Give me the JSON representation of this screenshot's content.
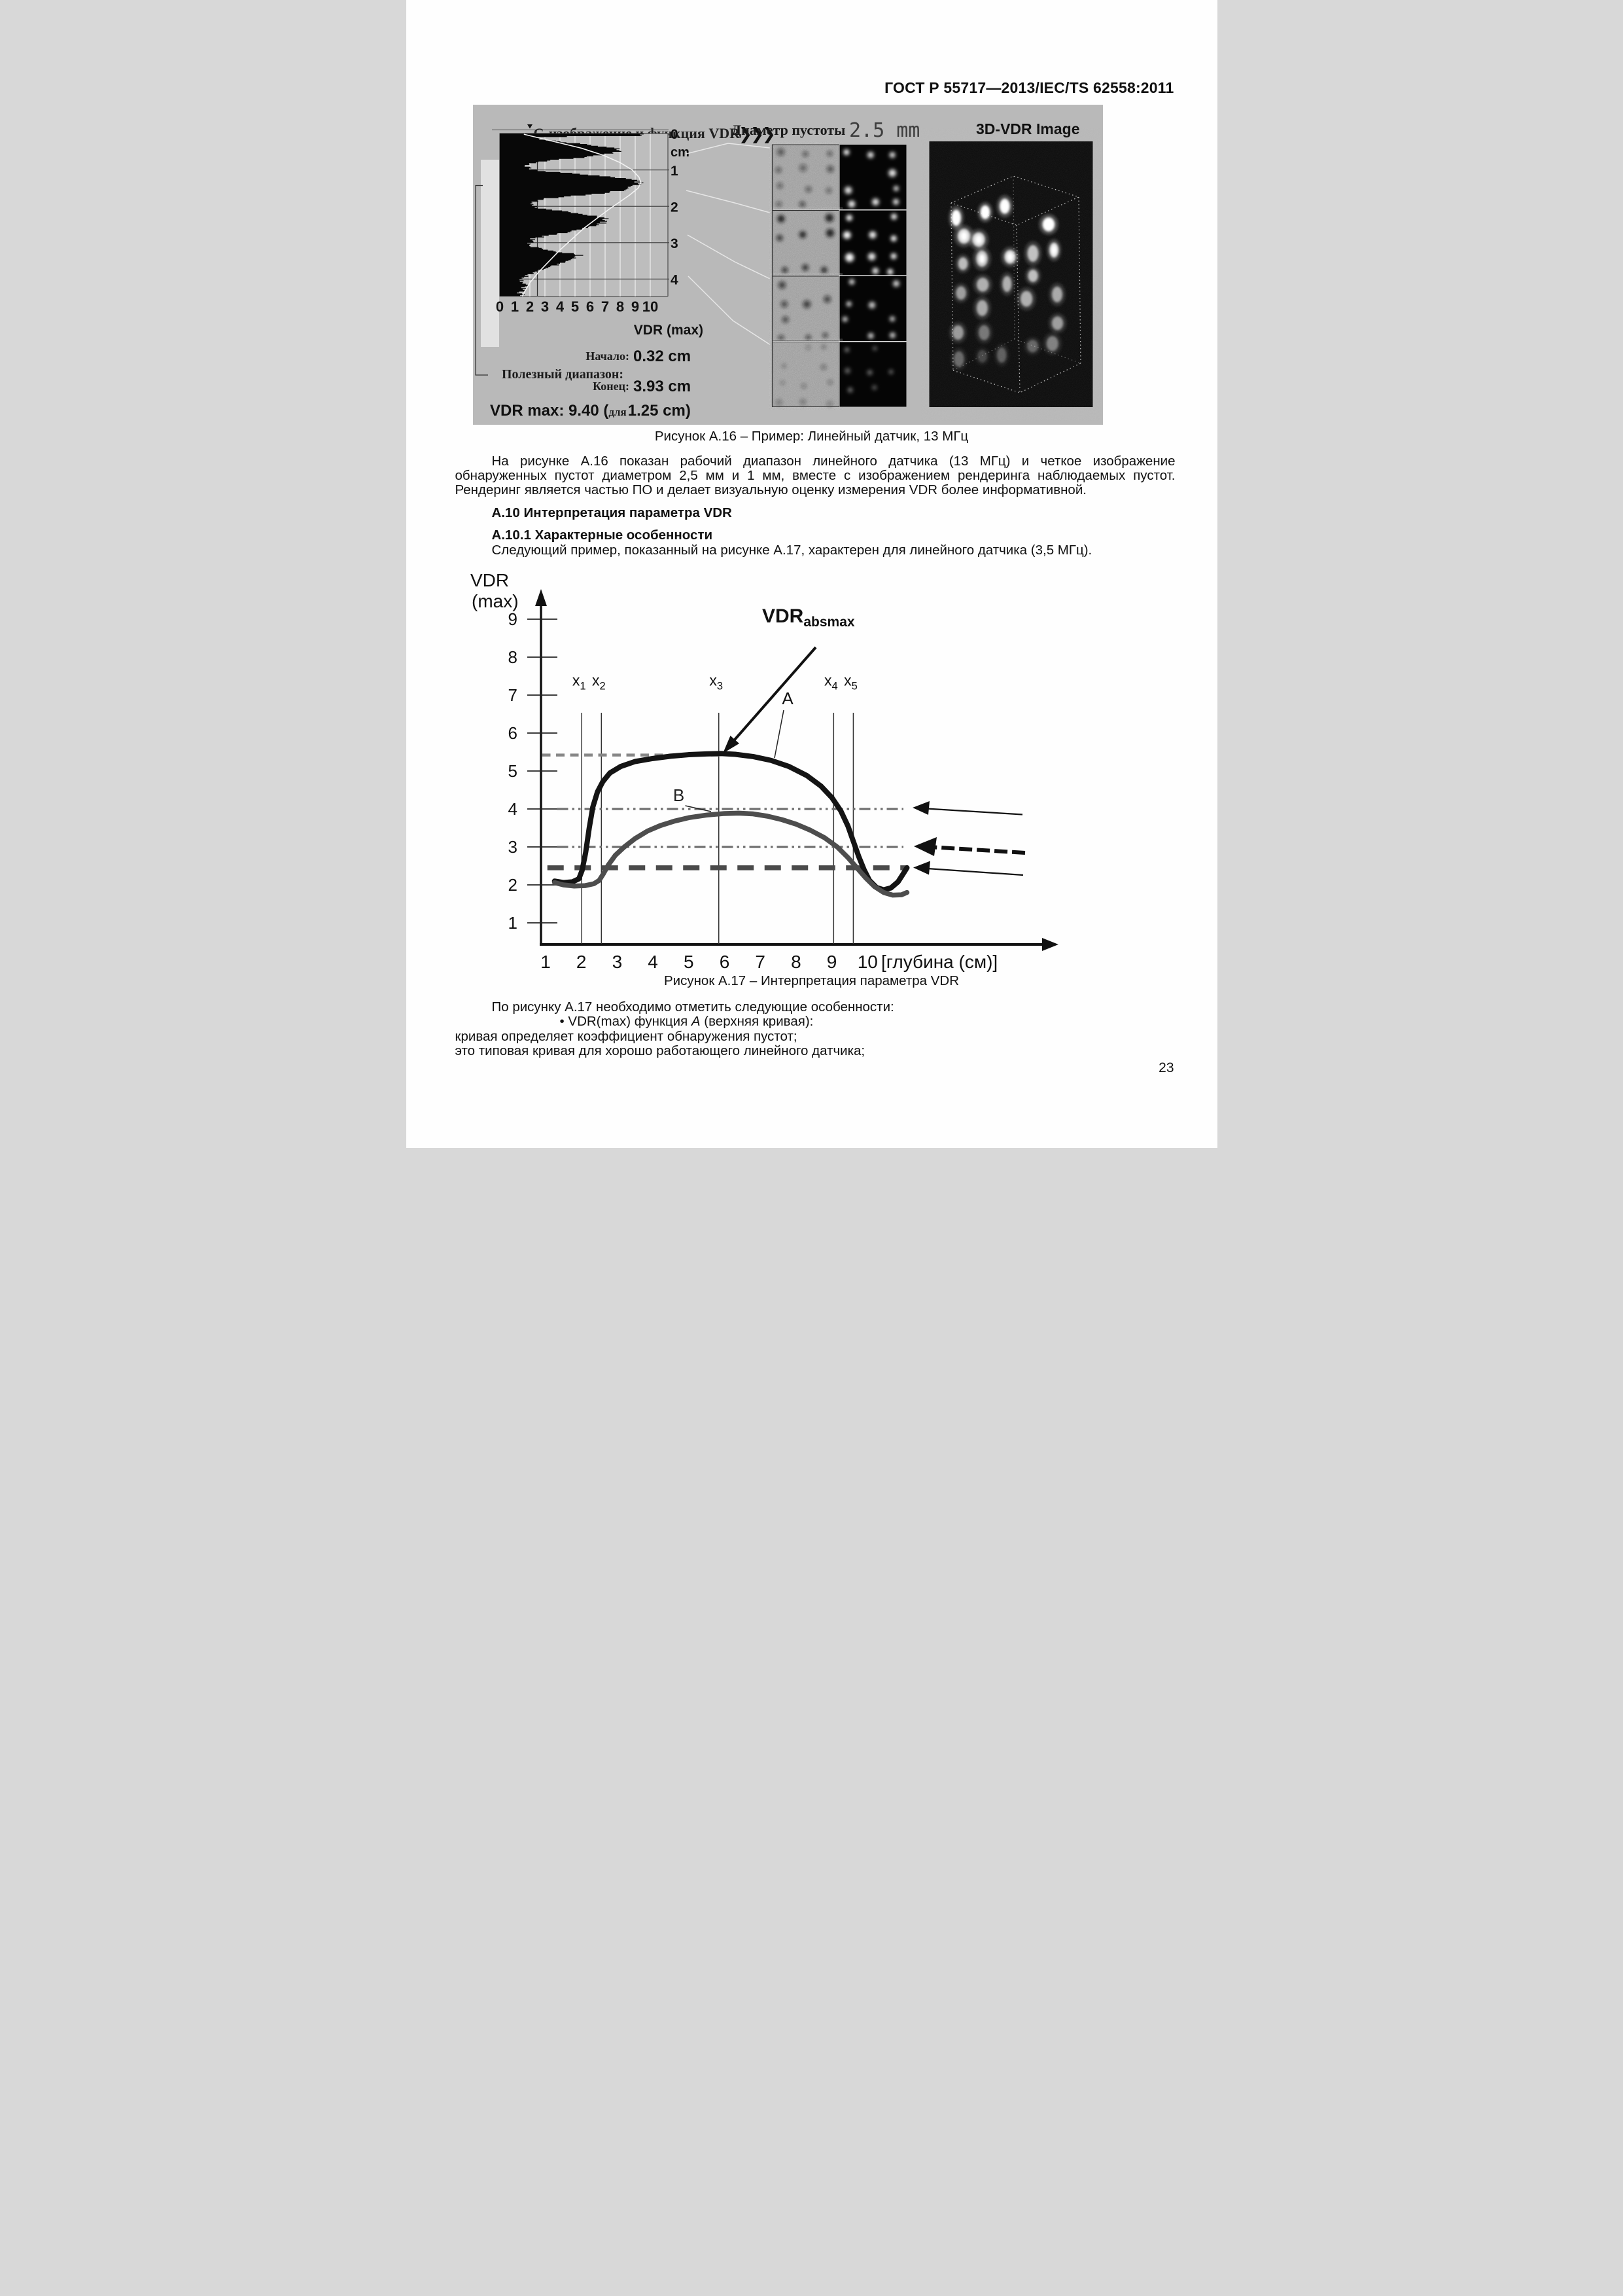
{
  "header": {
    "title": "ГОСТ Р 55717—2013/IEC/TS 62558:2011"
  },
  "page": {
    "number": "23"
  },
  "captions": {
    "fig16": "Рисунок А.16 – Пример: Линейный датчик, 13 МГц",
    "fig17": "Рисунок А.17 – Интерпретация параметра VDR"
  },
  "paragraphs": {
    "p1_lines": [
      "На рисунке А.16 показан рабочий диапазон линейного датчика (13 МГц) и четкое изображение",
      "обнаруженных пустот диаметром 2,5 мм и 1 мм, вместе с изображением рендеринга наблюдаемых пустот.",
      "Рендеринг является частью ПО и делает визуальную оценку измерения VDR более информативной."
    ],
    "p2": "Следующий пример, показанный на рисунке А.17, характерен для линейного датчика (3,5 МГц)."
  },
  "headings": {
    "h10": "А.10 Интерпретация параметра VDR",
    "h101": "А.10.1 Характерные особенности"
  },
  "notes": {
    "line1": "По рисунку А.17 необходимо отметить следующие особенности:",
    "bullet_marker": "•",
    "bullet_pre": "VDR(max) функция ",
    "bullet_italic": "А",
    "bullet_post": " (верхняя кривая):",
    "line3": "кривая определяет коэффициент обнаружения пустот;",
    "line4": "это типовая кривая для хорошо работающего линейного датчика;"
  },
  "figure16": {
    "left_title": "С-изображение и функция VDR",
    "arrows": "❯❯❯",
    "cm_labels": [
      "0",
      "cm",
      "1",
      "2",
      "3",
      "4"
    ],
    "x_labels": [
      "0",
      "1",
      "2",
      "3",
      "4",
      "5",
      "6",
      "7",
      "8",
      "9",
      "10"
    ],
    "x_axis_label": "VDR (max)",
    "useful_range_label": "Полезный диапазон:",
    "start_label": "Начало:",
    "start_value": "0.32 cm",
    "end_label": "Конец:",
    "end_value": "3.93 cm",
    "vdr_max_parts": [
      "VDR max: 9.40 (",
      "для",
      "1.25 cm)"
    ],
    "void_title": "Диаметр пустоты",
    "void_value": "2.5 mm",
    "title_3d_parts": [
      "3D-",
      "VDR",
      " Image"
    ],
    "c_image_profile": [
      [
        0,
        9.5
      ],
      [
        0.05,
        9.2
      ],
      [
        0.08,
        2.6
      ],
      [
        0.16,
        2.8
      ],
      [
        0.25,
        4.8
      ],
      [
        0.33,
        6.6
      ],
      [
        0.42,
        8.1
      ],
      [
        0.5,
        7.8
      ],
      [
        0.58,
        6.9
      ],
      [
        0.66,
        5.2
      ],
      [
        0.74,
        3.0
      ],
      [
        0.8,
        2.1
      ],
      [
        0.88,
        1.9
      ],
      [
        0.96,
        2.1
      ],
      [
        1.02,
        2.8
      ],
      [
        1.1,
        5.2
      ],
      [
        1.18,
        7.6
      ],
      [
        1.27,
        9.0
      ],
      [
        1.35,
        9.3
      ],
      [
        1.45,
        8.9
      ],
      [
        1.55,
        8.2
      ],
      [
        1.65,
        6.4
      ],
      [
        1.73,
        4.2
      ],
      [
        1.8,
        2.6
      ],
      [
        1.88,
        2.1
      ],
      [
        1.96,
        2.2
      ],
      [
        2.05,
        2.6
      ],
      [
        2.14,
        4.4
      ],
      [
        2.24,
        6.2
      ],
      [
        2.34,
        7.1
      ],
      [
        2.45,
        6.8
      ],
      [
        2.56,
        6.0
      ],
      [
        2.66,
        5.0
      ],
      [
        2.76,
        3.6
      ],
      [
        2.86,
        2.4
      ],
      [
        2.95,
        2.0
      ],
      [
        3.05,
        2.0
      ],
      [
        3.14,
        2.6
      ],
      [
        3.24,
        4.0
      ],
      [
        3.34,
        5.3
      ],
      [
        3.44,
        4.9
      ],
      [
        3.56,
        4.0
      ],
      [
        3.68,
        3.1
      ],
      [
        3.8,
        2.4
      ],
      [
        3.9,
        1.8
      ],
      [
        4.05,
        1.5
      ],
      [
        4.2,
        1.7
      ],
      [
        4.35,
        1.3
      ],
      [
        4.47,
        1.6
      ]
    ],
    "vdr_curve": [
      [
        0.02,
        1.6
      ],
      [
        0.2,
        3.4
      ],
      [
        0.4,
        5.4
      ],
      [
        0.6,
        6.9
      ],
      [
        0.8,
        8.0
      ],
      [
        1.0,
        8.8
      ],
      [
        1.2,
        9.25
      ],
      [
        1.35,
        9.38
      ],
      [
        1.5,
        9.2
      ],
      [
        1.7,
        8.6
      ],
      [
        1.9,
        7.9
      ],
      [
        2.1,
        7.2
      ],
      [
        2.35,
        6.4
      ],
      [
        2.6,
        5.6
      ],
      [
        2.9,
        4.8
      ],
      [
        3.2,
        4.0
      ],
      [
        3.5,
        3.3
      ],
      [
        3.8,
        2.6
      ],
      [
        4.1,
        2.0
      ],
      [
        4.35,
        1.65
      ],
      [
        4.47,
        1.5
      ]
    ],
    "void_rows": [
      {
        "dark": 0.6,
        "bright": 0.95,
        "r": 10
      },
      {
        "dark": 0.95,
        "bright": 1.0,
        "r": 11
      },
      {
        "dark": 0.8,
        "bright": 0.78,
        "r": 10
      },
      {
        "dark": 0.38,
        "bright": 0.45,
        "r": 8
      }
    ]
  },
  "chart_data": {
    "type": "line",
    "title": "",
    "xlabel": "[глубина (см)]",
    "ylabel_lines": [
      "VDR",
      "(max)"
    ],
    "x_ticks": [
      "1",
      "2",
      "3",
      "4",
      "5",
      "6",
      "7",
      "8",
      "9",
      "10"
    ],
    "y_ticks": [
      "1",
      "2",
      "3",
      "4",
      "5",
      "6",
      "7",
      "8",
      "9"
    ],
    "xlim": [
      0.75,
      15.3
    ],
    "ylim": [
      0.35,
      9.8
    ],
    "grid": false,
    "legend_position": "none",
    "depth_markers": [
      {
        "base": "x",
        "sub": "1",
        "x": 2.01
      },
      {
        "base": "x",
        "sub": "2",
        "x": 2.56
      },
      {
        "base": "x",
        "sub": "3",
        "x": 5.84
      },
      {
        "base": "x",
        "sub": "4",
        "x": 9.05
      },
      {
        "base": "x",
        "sub": "5",
        "x": 9.6
      }
    ],
    "reference_lines": [
      {
        "y": 5.42,
        "style": "dashed",
        "from": 0.9,
        "to": 5.9
      },
      {
        "y": 4.0,
        "style": "dashdot",
        "from": 1.32,
        "to": 11.0
      },
      {
        "y": 3.0,
        "style": "dashdot",
        "from": 1.32,
        "to": 11.0
      },
      {
        "y": 2.45,
        "style": "bold_dashed",
        "from": 1.05,
        "to": 11.12
      }
    ],
    "series": [
      {
        "name": "A",
        "color": "#141414",
        "width": 16,
        "points": [
          [
            1.25,
            2.1
          ],
          [
            1.5,
            2.06
          ],
          [
            1.75,
            2.08
          ],
          [
            1.93,
            2.16
          ],
          [
            2.02,
            2.38
          ],
          [
            2.12,
            2.85
          ],
          [
            2.22,
            3.5
          ],
          [
            2.32,
            4.05
          ],
          [
            2.45,
            4.45
          ],
          [
            2.6,
            4.72
          ],
          [
            2.8,
            4.95
          ],
          [
            3.1,
            5.12
          ],
          [
            3.5,
            5.25
          ],
          [
            4.0,
            5.33
          ],
          [
            4.5,
            5.39
          ],
          [
            5.0,
            5.43
          ],
          [
            5.5,
            5.45
          ],
          [
            5.9,
            5.46
          ],
          [
            6.3,
            5.44
          ],
          [
            6.8,
            5.38
          ],
          [
            7.3,
            5.28
          ],
          [
            7.8,
            5.12
          ],
          [
            8.3,
            4.88
          ],
          [
            8.7,
            4.6
          ],
          [
            9.0,
            4.3
          ],
          [
            9.25,
            3.95
          ],
          [
            9.45,
            3.55
          ],
          [
            9.6,
            3.15
          ],
          [
            9.75,
            2.75
          ],
          [
            9.9,
            2.4
          ],
          [
            10.05,
            2.12
          ],
          [
            10.25,
            1.93
          ],
          [
            10.45,
            1.87
          ],
          [
            10.65,
            1.92
          ],
          [
            10.85,
            2.08
          ],
          [
            11.0,
            2.3
          ],
          [
            11.1,
            2.45
          ]
        ]
      },
      {
        "name": "B",
        "color": "#4d4d4d",
        "width": 15,
        "points": [
          [
            1.25,
            2.06
          ],
          [
            1.5,
            2.0
          ],
          [
            1.8,
            1.97
          ],
          [
            2.1,
            1.98
          ],
          [
            2.35,
            2.03
          ],
          [
            2.5,
            2.12
          ],
          [
            2.62,
            2.3
          ],
          [
            2.75,
            2.52
          ],
          [
            2.95,
            2.78
          ],
          [
            3.2,
            3.0
          ],
          [
            3.5,
            3.22
          ],
          [
            3.85,
            3.42
          ],
          [
            4.2,
            3.56
          ],
          [
            4.6,
            3.68
          ],
          [
            5.0,
            3.77
          ],
          [
            5.5,
            3.84
          ],
          [
            6.0,
            3.88
          ],
          [
            6.4,
            3.89
          ],
          [
            6.8,
            3.87
          ],
          [
            7.2,
            3.81
          ],
          [
            7.6,
            3.72
          ],
          [
            8.0,
            3.6
          ],
          [
            8.4,
            3.44
          ],
          [
            8.8,
            3.24
          ],
          [
            9.15,
            3.0
          ],
          [
            9.45,
            2.72
          ],
          [
            9.7,
            2.45
          ],
          [
            9.95,
            2.18
          ],
          [
            10.2,
            1.95
          ],
          [
            10.45,
            1.8
          ],
          [
            10.7,
            1.73
          ],
          [
            10.95,
            1.74
          ],
          [
            11.1,
            1.8
          ]
        ]
      }
    ],
    "annotations": {
      "absmax_base": "VDR",
      "absmax_sub": "absmax",
      "a_label": "A",
      "b_label": "B"
    }
  }
}
